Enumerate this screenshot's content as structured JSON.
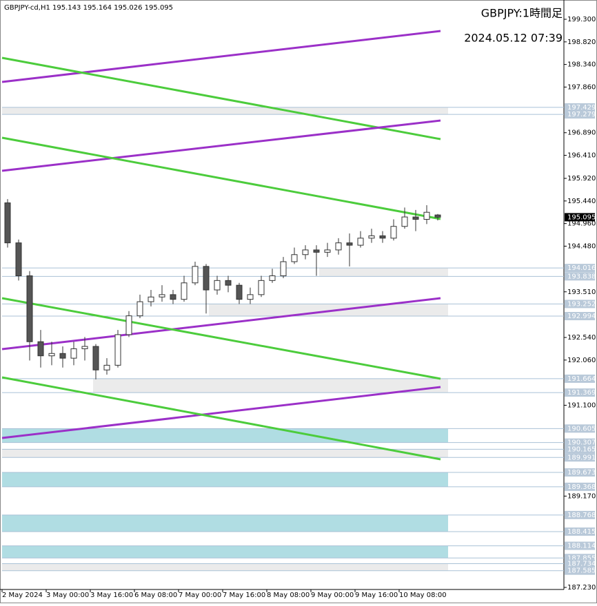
{
  "chart_data": {
    "type": "candlestick",
    "header": {
      "symbol": "GBPJPY-cd,H1"
    },
    "title": "GBPJPY:1時間足",
    "subtitle": "2024.05.12 07:39",
    "ylim": [
      187.23,
      199.3
    ],
    "yticks": [
      {
        "value": 199.3,
        "label": "199.300"
      },
      {
        "value": 198.82,
        "label": "198.820"
      },
      {
        "value": 198.34,
        "label": "198.340"
      },
      {
        "value": 197.86,
        "label": "197.860"
      },
      {
        "value": 196.89,
        "label": "196.890"
      },
      {
        "value": 196.41,
        "label": "196.410"
      },
      {
        "value": 195.92,
        "label": "195.920"
      },
      {
        "value": 195.44,
        "label": "195.440"
      },
      {
        "value": 194.96,
        "label": "194.960"
      },
      {
        "value": 194.48,
        "label": "194.480"
      },
      {
        "value": 193.51,
        "label": "193.510"
      },
      {
        "value": 192.54,
        "label": "192.540"
      },
      {
        "value": 192.06,
        "label": "192.060"
      },
      {
        "value": 191.1,
        "label": "191.100"
      },
      {
        "value": 189.17,
        "label": "189.170"
      },
      {
        "value": 187.23,
        "label": "187.230"
      }
    ],
    "xticks": [
      {
        "value": 0,
        "label": "2 May 2024"
      },
      {
        "value": 16,
        "label": "3 May 00:00"
      },
      {
        "value": 32,
        "label": "3 May 16:00"
      },
      {
        "value": 48,
        "label": "6 May 08:00"
      },
      {
        "value": 64,
        "label": "7 May 00:00"
      },
      {
        "value": 80,
        "label": "7 May 16:00"
      },
      {
        "value": 96,
        "label": "8 May 08:00"
      },
      {
        "value": 112,
        "label": "9 May 00:00"
      },
      {
        "value": 128,
        "label": "9 May 16:00"
      },
      {
        "value": 144,
        "label": "10 May 08:00"
      }
    ],
    "open": [
      195.4,
      194.55,
      193.85,
      192.45,
      192.15,
      192.2,
      192.1,
      192.3,
      192.35,
      191.85,
      191.95,
      192.6,
      193.0,
      193.3,
      193.4,
      193.45,
      193.35,
      193.7,
      194.05,
      193.55,
      193.75,
      193.65,
      193.35,
      193.45,
      193.75,
      193.85,
      194.15,
      194.3,
      194.4,
      194.35,
      194.4,
      194.55,
      194.5,
      194.65,
      194.7,
      194.65,
      194.9,
      195.1,
      195.05,
      195.143
    ],
    "high": [
      195.48,
      194.62,
      193.95,
      192.7,
      192.45,
      192.35,
      192.45,
      192.55,
      192.4,
      192.1,
      192.7,
      193.1,
      193.45,
      193.55,
      193.65,
      193.55,
      193.85,
      194.15,
      194.1,
      193.85,
      193.85,
      193.7,
      193.6,
      193.85,
      194.0,
      194.25,
      194.45,
      194.5,
      194.5,
      194.55,
      194.65,
      194.75,
      194.8,
      194.85,
      194.8,
      195.05,
      195.3,
      195.25,
      195.35,
      195.164
    ],
    "low": [
      194.45,
      193.75,
      192.05,
      191.9,
      191.95,
      191.9,
      191.95,
      192.05,
      191.65,
      191.75,
      191.9,
      192.55,
      192.95,
      193.2,
      193.3,
      193.25,
      193.3,
      193.65,
      193.05,
      193.45,
      193.5,
      193.25,
      193.25,
      193.4,
      193.7,
      193.8,
      194.1,
      194.2,
      193.85,
      194.25,
      194.3,
      194.05,
      194.45,
      194.55,
      194.55,
      194.6,
      194.85,
      194.8,
      194.95,
      195.026
    ],
    "close": [
      194.55,
      193.85,
      192.45,
      192.15,
      192.2,
      192.1,
      192.3,
      192.35,
      191.85,
      191.95,
      192.6,
      193.0,
      193.3,
      193.4,
      193.45,
      193.35,
      193.7,
      194.05,
      193.55,
      193.75,
      193.65,
      193.35,
      193.45,
      193.75,
      193.85,
      194.15,
      194.3,
      194.4,
      194.35,
      194.4,
      194.55,
      194.5,
      194.65,
      194.7,
      194.65,
      194.9,
      195.1,
      195.05,
      195.2,
      195.095
    ],
    "levels": [
      197.429,
      197.279,
      194.016,
      193.838,
      193.252,
      192.994,
      191.664,
      191.369,
      190.605,
      190.307,
      190.165,
      189.991,
      189.673,
      189.368,
      188.768,
      188.415,
      188.114,
      187.855,
      187.734,
      187.585
    ],
    "zones": [
      {
        "levels": [
          0,
          1
        ],
        "start": 0,
        "color": "#ebebeb"
      },
      {
        "levels": [
          2,
          3
        ],
        "start": 115,
        "color": "#ebebeb"
      },
      {
        "levels": [
          4,
          5
        ],
        "start": 75,
        "color": "#ebebeb"
      },
      {
        "levels": [
          6,
          7
        ],
        "start": 33,
        "color": "#ebebeb"
      },
      {
        "levels": [
          8,
          9
        ],
        "start": 0,
        "color": "#b0dde3"
      },
      {
        "levels": [
          10,
          11
        ],
        "start": 0,
        "color": "#ebebeb"
      },
      {
        "levels": [
          12,
          13
        ],
        "start": 0,
        "color": "#b0dde3"
      },
      {
        "levels": [
          14,
          15
        ],
        "start": 0,
        "color": "#b0dde3"
      },
      {
        "levels": [
          16,
          17
        ],
        "start": 0,
        "color": "#b0dde3"
      },
      {
        "levels": [
          18,
          19
        ],
        "start": 0,
        "color": "#ebebeb"
      }
    ],
    "lines": [
      {
        "x": [
          0,
          159
        ],
        "y": [
          197.969,
          199.051
        ],
        "color": "#9b30c8"
      },
      {
        "x": [
          0,
          159
        ],
        "y": [
          198.481,
          196.754
        ],
        "color": "#4ccc3c"
      },
      {
        "x": [
          0,
          159
        ],
        "y": [
          196.081,
          197.149
        ],
        "color": "#9b30c8"
      },
      {
        "x": [
          0,
          159
        ],
        "y": [
          196.784,
          195.057
        ],
        "color": "#4ccc3c"
      },
      {
        "x": [
          0,
          159
        ],
        "y": [
          192.292,
          193.375
        ],
        "color": "#9b30c8"
      },
      {
        "x": [
          0,
          159
        ],
        "y": [
          193.375,
          191.663
        ],
        "color": "#4ccc3c"
      },
      {
        "x": [
          0,
          159
        ],
        "y": [
          190.405,
          191.487
        ],
        "color": "#9b30c8"
      },
      {
        "x": [
          0,
          159
        ],
        "y": [
          191.692,
          189.951
        ],
        "color": "#4ccc3c"
      }
    ]
  }
}
